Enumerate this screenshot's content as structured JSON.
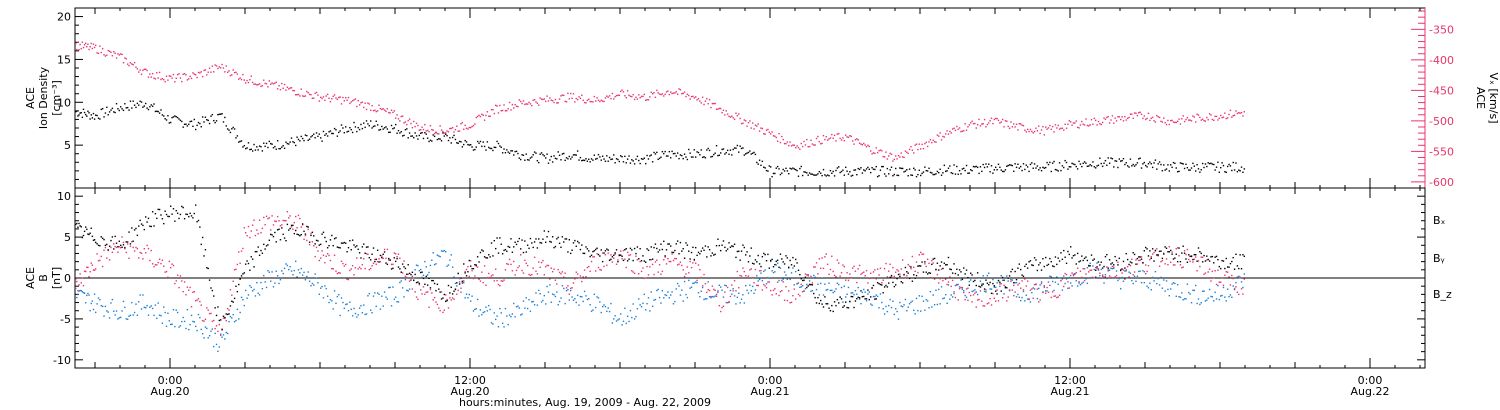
{
  "colors": {
    "axis": "#000000",
    "black_series": "#000000",
    "pink_series": "#e8356a",
    "blue_series": "#1a7fd6"
  },
  "chart_data": [
    {
      "type": "scatter",
      "panel": "top",
      "ylabel_left": [
        "ACE",
        "Ion Density",
        "[cm⁻³]"
      ],
      "ylabel_right": [
        "ACE",
        "Vₓ [km/s]"
      ],
      "ylim_left": [
        0,
        21
      ],
      "ylim_right": [
        -610,
        -315
      ],
      "yticks_left": [
        "5",
        "10",
        "15",
        "20"
      ],
      "yticks_right": [
        "-600",
        "-550",
        "-500",
        "-450",
        "-400",
        "-350"
      ],
      "x_unit": "hours since 00:00 Aug 19, 2009",
      "series": [
        {
          "axis": "left",
          "color": "#000000",
          "x": [
            20.2,
            21,
            22,
            23,
            24,
            25,
            26,
            27,
            28,
            29,
            30,
            31,
            32,
            33,
            34,
            35,
            36,
            37,
            38,
            39,
            40,
            41,
            42,
            43,
            44,
            45,
            46,
            47,
            48,
            49,
            50,
            51,
            52,
            53,
            54,
            55,
            56,
            57,
            58,
            59,
            60,
            61,
            62,
            63,
            64,
            65,
            66,
            67
          ],
          "y": [
            9,
            8.5,
            9.5,
            10,
            8,
            7.5,
            8.5,
            5,
            5,
            5.5,
            6,
            7,
            7.5,
            7,
            6,
            6,
            5,
            5,
            4,
            3.5,
            4,
            3.5,
            3.5,
            3.5,
            4,
            4,
            4.5,
            4.5,
            2,
            2,
            2,
            2,
            2,
            2,
            2,
            2.2,
            2.2,
            2.4,
            2.5,
            2.5,
            2.8,
            3,
            3,
            3,
            2.5,
            2.5,
            2.5,
            2.5
          ]
        },
        {
          "axis": "right",
          "color": "#e8356a",
          "x": [
            20.2,
            21,
            22,
            23,
            24,
            25,
            26,
            27,
            28,
            29,
            30,
            31,
            32,
            33,
            34,
            35,
            36,
            37,
            38,
            39,
            40,
            41,
            42,
            43,
            44,
            45,
            46,
            47,
            48,
            49,
            50,
            51,
            52,
            53,
            54,
            55,
            56,
            57,
            58,
            59,
            60,
            61,
            62,
            63,
            64,
            65,
            66,
            67
          ],
          "y": [
            -375,
            -380,
            -395,
            -420,
            -430,
            -425,
            -410,
            -430,
            -440,
            -450,
            -460,
            -465,
            -475,
            -490,
            -510,
            -515,
            -505,
            -480,
            -470,
            -465,
            -460,
            -465,
            -455,
            -460,
            -450,
            -460,
            -480,
            -500,
            -520,
            -540,
            -530,
            -525,
            -545,
            -560,
            -540,
            -520,
            -505,
            -500,
            -510,
            -515,
            -505,
            -500,
            -495,
            -490,
            -500,
            -495,
            -490,
            -485
          ]
        }
      ]
    },
    {
      "type": "scatter",
      "panel": "bottom",
      "ylabel_left": [
        "ACE",
        "B",
        "[nT]"
      ],
      "ylim": [
        -11,
        11
      ],
      "yticks": [
        "-10",
        "-5",
        "0",
        "5",
        "10"
      ],
      "zero_line": true,
      "x_unit": "hours since 00:00 Aug 19, 2009",
      "legend": [
        {
          "label": "Bₓ",
          "color": "#000000"
        },
        {
          "label": "Bᵧ",
          "color": "#1a7fd6"
        },
        {
          "label": "B_z",
          "color": "#e8356a"
        }
      ],
      "series": [
        {
          "name": "Bₓ",
          "color": "#000000",
          "x": [
            20.2,
            21,
            22,
            23,
            24,
            25,
            26,
            27,
            28,
            29,
            30,
            31,
            32,
            33,
            34,
            35,
            36,
            37,
            38,
            39,
            40,
            41,
            42,
            43,
            44,
            45,
            46,
            47,
            48,
            49,
            50,
            51,
            52,
            53,
            54,
            55,
            56,
            57,
            58,
            59,
            60,
            61,
            62,
            63,
            64,
            65,
            66,
            67
          ],
          "y": [
            6,
            5,
            4,
            7,
            8,
            8,
            -6,
            1,
            5,
            6,
            5,
            4,
            3,
            2,
            0,
            -2,
            2,
            4,
            4,
            5,
            4,
            3,
            3,
            3,
            4,
            3,
            4,
            3,
            2,
            2,
            -3,
            -3,
            -2,
            0,
            1,
            2,
            0,
            -1,
            1,
            2,
            3,
            2,
            2,
            3,
            3,
            3,
            2,
            2
          ]
        },
        {
          "name": "Bᵧ",
          "color": "#1a7fd6",
          "x": [
            20.2,
            21,
            22,
            23,
            24,
            25,
            26,
            27,
            28,
            29,
            30,
            31,
            32,
            33,
            34,
            35,
            36,
            37,
            38,
            39,
            40,
            41,
            42,
            43,
            44,
            45,
            46,
            47,
            48,
            49,
            50,
            51,
            52,
            53,
            54,
            55,
            56,
            57,
            58,
            59,
            60,
            61,
            62,
            63,
            64,
            65,
            66,
            67
          ],
          "y": [
            -2,
            -3,
            -4,
            -3,
            -5,
            -5,
            -8,
            -2,
            0,
            1,
            -1,
            -4,
            -3,
            -2,
            1,
            3,
            -3,
            -5,
            -4,
            -2,
            -2,
            -3,
            -5,
            -3,
            -2,
            -1,
            -2,
            -2,
            1,
            0,
            -1,
            -2,
            -2,
            -4,
            -3,
            -2,
            -1,
            0,
            -2,
            -1,
            0,
            1,
            0,
            0,
            -1,
            -2,
            -2,
            0
          ]
        },
        {
          "name": "B_z",
          "color": "#e8356a",
          "x": [
            20.2,
            21,
            22,
            23,
            24,
            25,
            26,
            27,
            28,
            29,
            30,
            31,
            32,
            33,
            34,
            35,
            36,
            37,
            38,
            39,
            40,
            41,
            42,
            43,
            44,
            45,
            46,
            47,
            48,
            49,
            50,
            51,
            52,
            53,
            54,
            55,
            56,
            57,
            58,
            59,
            60,
            61,
            62,
            63,
            64,
            65,
            66,
            67
          ],
          "y": [
            -1,
            2,
            4,
            3,
            1,
            -3,
            -7,
            6,
            7,
            7,
            3,
            1,
            2,
            3,
            -2,
            -3,
            1,
            0,
            2,
            1,
            -1,
            2,
            3,
            1,
            2,
            1,
            -3,
            1,
            -1,
            -2,
            2,
            1,
            0,
            1,
            2,
            0,
            -3,
            -2,
            -1,
            -2,
            0,
            1,
            1,
            2,
            3,
            2,
            0,
            -1
          ]
        }
      ]
    }
  ],
  "x_axis": {
    "xlim_hours": [
      20.2,
      74.2
    ],
    "ticks": [
      {
        "h": 24,
        "time": "0:00",
        "date": "Aug.20"
      },
      {
        "h": 36,
        "time": "12:00",
        "date": "Aug.20"
      },
      {
        "h": 48,
        "time": "0:00",
        "date": "Aug.21"
      },
      {
        "h": 60,
        "time": "12:00",
        "date": "Aug.21"
      },
      {
        "h": 72,
        "time": "0:00",
        "date": "Aug.22"
      }
    ],
    "title": "hours:minutes, Aug. 19, 2009 - Aug. 22, 2009"
  }
}
